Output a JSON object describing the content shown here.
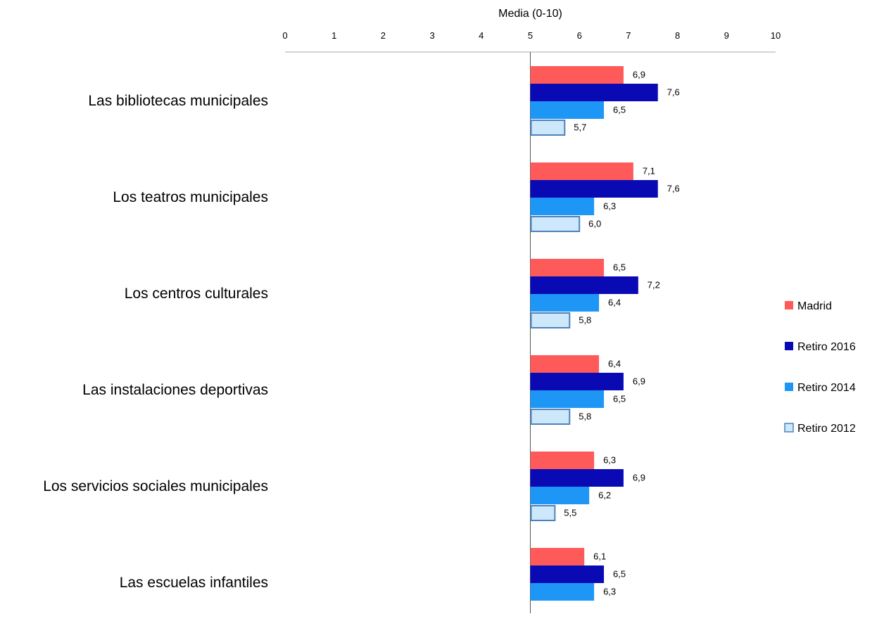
{
  "chart_data": {
    "type": "bar",
    "orientation": "horizontal",
    "axis_title": "Media (0-10)",
    "xlim": [
      0,
      10
    ],
    "xticks": [
      "0",
      "1",
      "2",
      "3",
      "4",
      "5",
      "6",
      "7",
      "8",
      "9",
      "10"
    ],
    "reference_line": 5,
    "categories": [
      "Las bibliotecas municipales",
      "Los teatros municipales",
      "Los  centros culturales",
      "Las instalaciones deportivas",
      "Los servicios sociales municipales",
      "Las escuelas infantiles"
    ],
    "series": [
      {
        "name": "Madrid",
        "color": "#ff5a5a",
        "values": [
          6.9,
          7.1,
          6.5,
          6.4,
          6.3,
          6.1
        ],
        "labels": [
          "6,9",
          "7,1",
          "6,5",
          "6,4",
          "6,3",
          "6,1"
        ]
      },
      {
        "name": "Retiro 2016",
        "color": "#0a0ab4",
        "values": [
          7.6,
          7.6,
          7.2,
          6.9,
          6.9,
          6.5
        ],
        "labels": [
          "7,6",
          "7,6",
          "7,2",
          "6,9",
          "6,9",
          "6,5"
        ]
      },
      {
        "name": "Retiro 2014",
        "color": "#1e96f5",
        "values": [
          6.5,
          6.3,
          6.4,
          6.5,
          6.2,
          6.3
        ],
        "labels": [
          "6,5",
          "6,3",
          "6,4",
          "6,5",
          "6,2",
          "6,3"
        ]
      },
      {
        "name": "Retiro 2012",
        "color": "#cde8fb",
        "border": "#4f81bd",
        "values": [
          5.7,
          6.0,
          5.8,
          5.8,
          5.5,
          null
        ],
        "labels": [
          "5,7",
          "6,0",
          "5,8",
          "5,8",
          "5,5",
          ""
        ]
      }
    ],
    "legend_position": "right",
    "grid": false
  }
}
